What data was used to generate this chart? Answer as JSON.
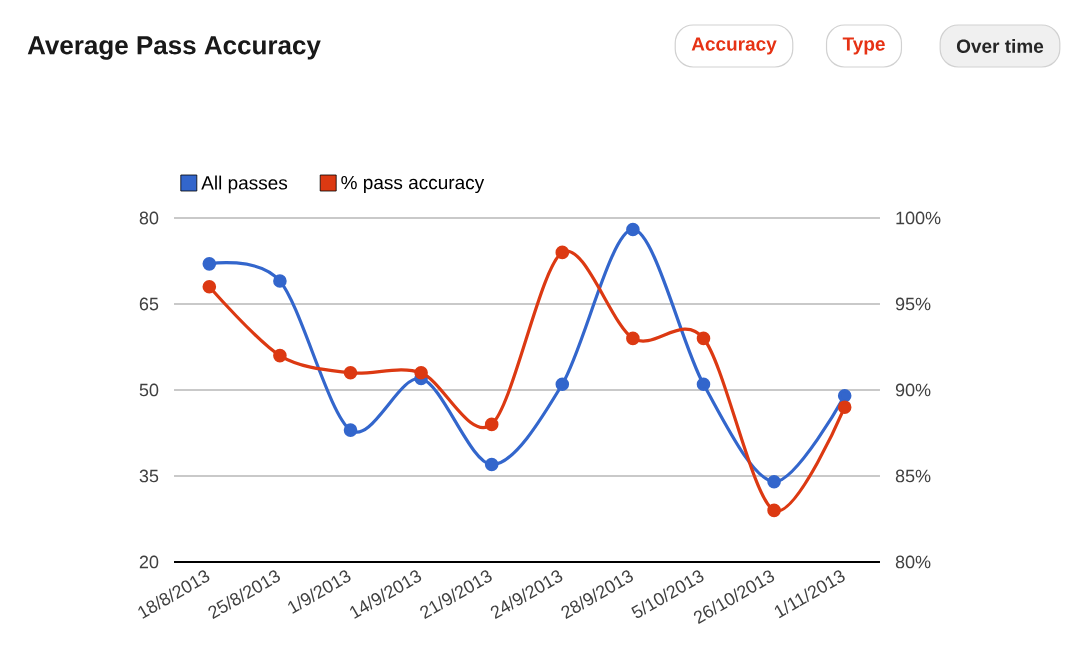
{
  "chart_data": {
    "type": "line",
    "title": "Average Pass Accuracy",
    "annotations": [
      "Accuracy",
      "Type",
      "Over time"
    ],
    "categories": [
      "18/8/2013",
      "25/8/2013",
      "1/9/2013",
      "14/9/2013",
      "21/9/2013",
      "24/9/2013",
      "28/9/2013",
      "5/10/2013",
      "26/10/2013",
      "1/11/2013"
    ],
    "series": [
      {
        "name": "All passes",
        "color": "#3366cc",
        "values": [
          72,
          69,
          43,
          52,
          37,
          51,
          78,
          51,
          34,
          49
        ]
      },
      {
        "name": "% pass accuracy",
        "color": "#dc3912",
        "axis": "y2",
        "values": [
          96,
          92,
          91,
          91,
          88,
          98,
          93,
          93,
          83,
          89
        ]
      }
    ],
    "ylim": [
      20,
      80
    ],
    "yticks": [
      20,
      35,
      50,
      65,
      80
    ],
    "y2lim": [
      80,
      100
    ],
    "y2ticks": [
      {
        "value": 80,
        "label": "80%"
      },
      {
        "value": 85,
        "label": "85%"
      },
      {
        "value": 90,
        "label": "90%"
      },
      {
        "value": 95,
        "label": "95%"
      },
      {
        "value": 100,
        "label": "100%"
      }
    ],
    "grid": "y",
    "legend": "top left",
    "marker": "circle"
  }
}
